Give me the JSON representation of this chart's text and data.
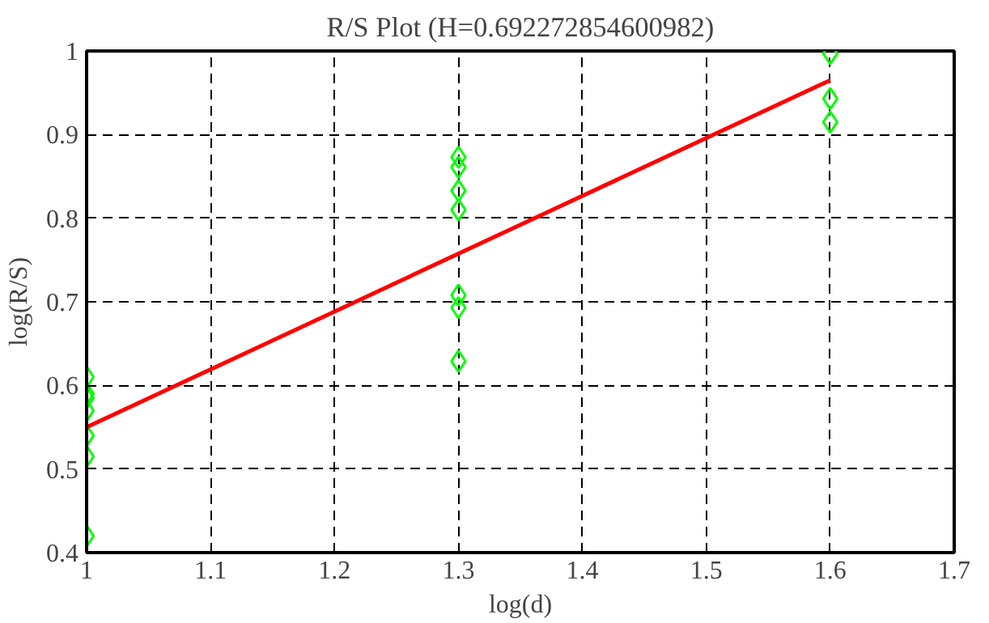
{
  "chart_data": {
    "type": "scatter",
    "title": "R/S Plot (H=0.692272854600982)",
    "xlabel": "log(d)",
    "ylabel": "log(R/S)",
    "series": [
      {
        "color": "#00ff00",
        "marker": "diamond",
        "x": [
          1,
          1,
          1,
          1,
          1,
          1,
          1,
          1.3,
          1.3,
          1.3,
          1.3,
          1.3,
          1.3,
          1.3,
          1.6,
          1.6,
          1.6
        ],
        "values": [
          0.61,
          0.59,
          0.585,
          0.57,
          0.54,
          0.515,
          0.42,
          0.873,
          0.861,
          0.833,
          0.81,
          0.708,
          0.693,
          0.629,
          0.997,
          0.943,
          0.915
        ]
      },
      {
        "type": "line",
        "color": "#ff0000",
        "x": [
          1,
          1.6
        ],
        "values": [
          0.55,
          0.965
        ]
      }
    ],
    "xlim": [
      1,
      1.7
    ],
    "xticks": [
      1,
      1.1,
      1.2,
      1.3,
      1.4,
      1.5,
      1.6,
      1.7
    ],
    "ylim": [
      0.4,
      1
    ],
    "yticks": [
      0.4,
      0.5,
      0.6,
      0.7,
      0.8,
      0.9,
      1
    ],
    "grid": true
  }
}
